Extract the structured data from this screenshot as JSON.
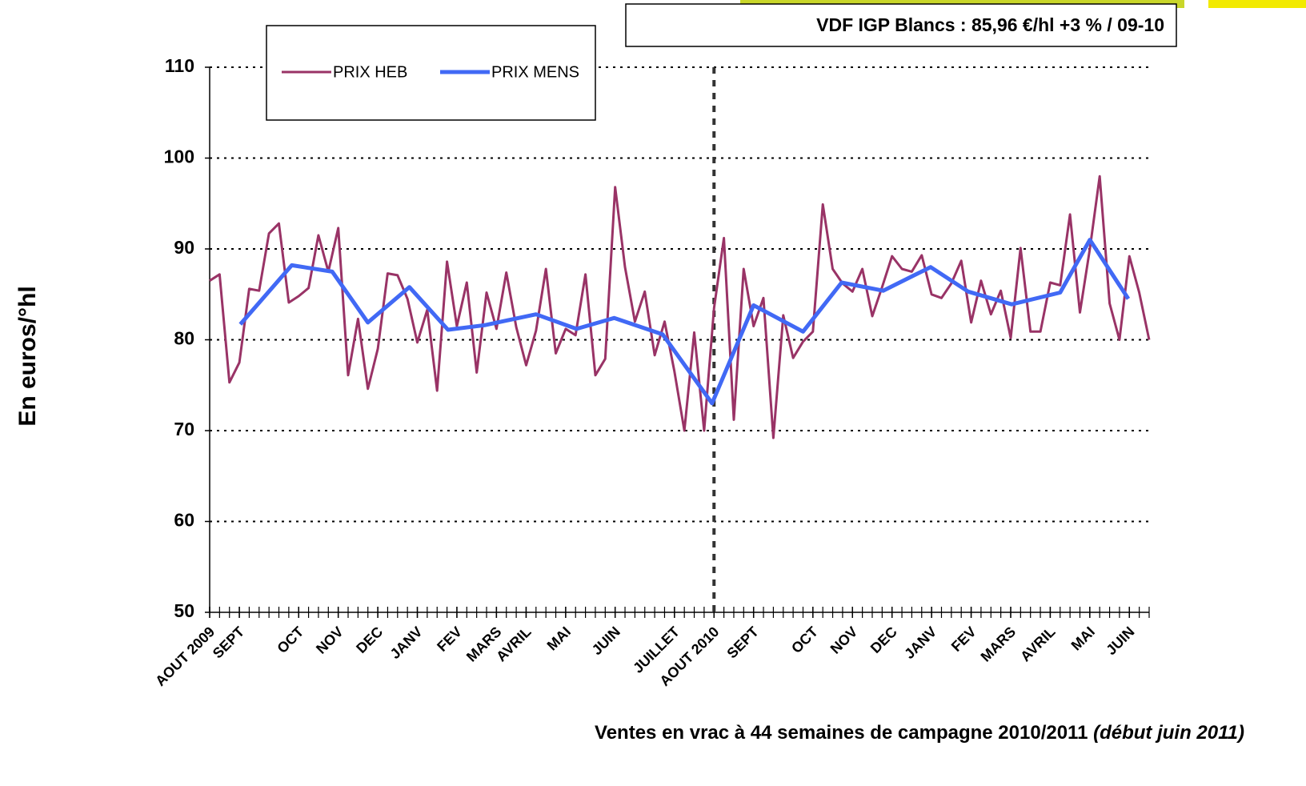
{
  "chart_data": {
    "type": "line",
    "annotation": "VDF IGP Blancs : 85,96 €/hl +3 % / 09-10",
    "ylabel": "En euros/°hl",
    "xlabel": "Ventes en vrac à 44 semaines de campagne 2010/2011",
    "xlabel_note": "(début juin 2011)",
    "xlim": [
      0,
      95
    ],
    "ylim": [
      50,
      110
    ],
    "yticks": [
      50,
      60,
      70,
      80,
      90,
      100,
      110
    ],
    "grid": true,
    "vline": 51,
    "legend": "top-left",
    "xticks": [
      {
        "value": 0,
        "label": "AOUT 2009"
      },
      {
        "value": 3,
        "label": "SEPT"
      },
      {
        "value": 9,
        "label": "OCT"
      },
      {
        "value": 13,
        "label": "NOV"
      },
      {
        "value": 17,
        "label": "DEC"
      },
      {
        "value": 21,
        "label": "JANV"
      },
      {
        "value": 25,
        "label": "FEV"
      },
      {
        "value": 29,
        "label": "MARS"
      },
      {
        "value": 32,
        "label": "AVRIL"
      },
      {
        "value": 36,
        "label": "MAI"
      },
      {
        "value": 41,
        "label": "JUIN"
      },
      {
        "value": 47,
        "label": "JUILLET"
      },
      {
        "value": 51,
        "label": "AOUT 2010"
      },
      {
        "value": 55,
        "label": "SEPT"
      },
      {
        "value": 61,
        "label": "OCT"
      },
      {
        "value": 65,
        "label": "NOV"
      },
      {
        "value": 69,
        "label": "DEC"
      },
      {
        "value": 73,
        "label": "JANV"
      },
      {
        "value": 77,
        "label": "FEV"
      },
      {
        "value": 81,
        "label": "MARS"
      },
      {
        "value": 85,
        "label": "AVRIL"
      },
      {
        "value": 89,
        "label": "MAI"
      },
      {
        "value": 93,
        "label": "JUIN"
      }
    ],
    "series": [
      {
        "name": "PRIX HEB",
        "color": "#993366",
        "x": [
          0,
          1,
          2,
          3,
          4,
          5,
          6,
          7,
          8,
          9,
          10,
          11,
          12,
          13,
          14,
          15,
          16,
          17,
          18,
          19,
          20,
          21,
          22,
          23,
          24,
          25,
          26,
          27,
          28,
          29,
          30,
          31,
          32,
          33,
          34,
          35,
          36,
          37,
          38,
          39,
          40,
          41,
          42,
          43,
          44,
          45,
          46,
          47,
          48,
          49,
          50,
          51,
          52,
          53,
          54,
          55,
          56,
          57,
          58,
          59,
          60,
          61,
          62,
          63,
          64,
          65,
          66,
          67,
          68,
          69,
          70,
          71,
          72,
          73,
          74,
          75,
          76,
          77,
          78,
          79,
          80,
          81,
          82,
          83,
          84,
          85,
          86,
          87,
          88,
          89,
          90,
          91,
          92,
          93,
          94,
          95
        ],
        "values": [
          86.5,
          87.2,
          75.3,
          77.5,
          85.6,
          85.4,
          91.7,
          92.8,
          84.1,
          84.8,
          85.7,
          91.5,
          87.5,
          92.3,
          76.1,
          82.3,
          74.6,
          79.0,
          87.3,
          87.1,
          84.5,
          79.7,
          83.3,
          74.4,
          88.6,
          81.5,
          86.3,
          76.4,
          85.2,
          81.2,
          87.4,
          81.4,
          77.2,
          81.0,
          87.8,
          78.5,
          81.2,
          80.5,
          87.2,
          76.1,
          77.9,
          96.8,
          88.0,
          82.0,
          85.3,
          78.3,
          82.0,
          76.5,
          70.0,
          80.8,
          70.0,
          83.5,
          91.2,
          71.2,
          87.8,
          81.5,
          84.6,
          69.2,
          82.7,
          78.0,
          79.8,
          80.9,
          94.9,
          87.8,
          86.2,
          85.3,
          87.8,
          82.6,
          85.8,
          89.2,
          87.8,
          87.5,
          89.3,
          85.0,
          84.6,
          86.2,
          88.7,
          81.9,
          86.5,
          82.8,
          85.4,
          80.2,
          90.1,
          80.9,
          80.9,
          86.3,
          86.0,
          93.8,
          83.0,
          90.0,
          98.0,
          84.0,
          80.0,
          89.2,
          85.2,
          80.0
        ]
      },
      {
        "name": "PRIX MENS",
        "color": "#4169f5",
        "x": [
          3.1,
          8.3,
          12.4,
          16.0,
          20.2,
          24.1,
          27.8,
          33.0,
          37.1,
          40.9,
          45.8,
          50.8,
          55.0,
          60.0,
          63.9,
          68.1,
          72.9,
          76.7,
          81.1,
          86.0,
          89.0,
          92.9
        ],
        "values": [
          81.7,
          88.2,
          87.5,
          81.9,
          85.8,
          81.1,
          81.6,
          82.8,
          81.2,
          82.4,
          80.6,
          73.0,
          83.8,
          80.9,
          86.3,
          85.4,
          88.0,
          85.3,
          83.9,
          85.2,
          91.0,
          84.5
        ]
      }
    ]
  }
}
